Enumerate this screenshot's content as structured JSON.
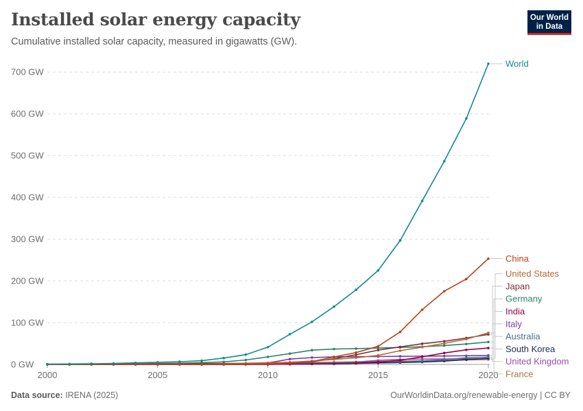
{
  "header": {
    "title": "Installed solar energy capacity",
    "subtitle": "Cumulative installed solar capacity, measured in gigawatts (GW).",
    "logo_line1": "Our World",
    "logo_line2": "in Data"
  },
  "footer": {
    "source_label": "Data source:",
    "source_value": "IRENA (2025)",
    "url_license": "OurWorldinData.org/renewable-energy | CC BY"
  },
  "chart_data": {
    "type": "line",
    "title": "Installed solar energy capacity",
    "subtitle": "Cumulative installed solar capacity, measured in gigawatts (GW).",
    "xlabel": "",
    "ylabel": "",
    "x": [
      2000,
      2001,
      2002,
      2003,
      2004,
      2005,
      2006,
      2007,
      2008,
      2009,
      2010,
      2011,
      2012,
      2013,
      2014,
      2015,
      2016,
      2017,
      2018,
      2019,
      2020
    ],
    "xlim": [
      2000,
      2020
    ],
    "ylim": [
      0,
      720
    ],
    "x_ticks": [
      2000,
      2005,
      2010,
      2015,
      2020
    ],
    "x_tick_labels": [
      "2000",
      "2005",
      "2010",
      "2015",
      "2020"
    ],
    "y_ticks": [
      0,
      100,
      200,
      300,
      400,
      500,
      600,
      700
    ],
    "y_tick_labels": [
      "0 GW",
      "100 GW",
      "200 GW",
      "300 GW",
      "400 GW",
      "500 GW",
      "600 GW",
      "700 GW"
    ],
    "grid": "horizontal dashed",
    "legend": "right, labels at line ends",
    "series": [
      {
        "name": "World",
        "color": "#138a8a",
        "values": [
          0.8,
          1.2,
          1.7,
          2.5,
          3.7,
          5.1,
          6.6,
          8.9,
          15.2,
          23.5,
          41.4,
          72.4,
          101.9,
          138.3,
          178.6,
          224.9,
          296.7,
          391.5,
          486.4,
          588.9,
          720
        ]
      },
      {
        "name": "China",
        "color": "#b5421c",
        "values": [
          0,
          0,
          0,
          0,
          0,
          0,
          0,
          0.1,
          0.1,
          0.4,
          1.0,
          3.1,
          6.7,
          17.8,
          28.4,
          43.5,
          77.8,
          130.8,
          175.3,
          204.6,
          253.4
        ]
      },
      {
        "name": "United States",
        "color": "#b56a3a",
        "values": [
          0.1,
          0.1,
          0.2,
          0.3,
          0.4,
          0.5,
          0.6,
          0.8,
          1.2,
          1.7,
          2.9,
          5.2,
          8.1,
          12.0,
          15.9,
          21.7,
          32.9,
          41.4,
          50.3,
          60.5,
          75.6
        ]
      },
      {
        "name": "Japan",
        "color": "#7d2e35",
        "values": [
          0.3,
          0.4,
          0.6,
          0.8,
          1.1,
          1.4,
          1.7,
          1.9,
          2.1,
          2.6,
          3.6,
          4.9,
          6.6,
          13.6,
          23.3,
          34.2,
          42.0,
          49.5,
          55.5,
          63.2,
          71.9
        ]
      },
      {
        "name": "Germany",
        "color": "#2c8465",
        "values": [
          0.1,
          0.2,
          0.3,
          0.4,
          1.1,
          2.1,
          2.9,
          4.2,
          6.1,
          10.6,
          18.0,
          25.9,
          34.1,
          36.7,
          37.9,
          39.2,
          40.7,
          42.3,
          45.2,
          48.9,
          53.8
        ]
      },
      {
        "name": "India",
        "color": "#970046",
        "values": [
          0,
          0,
          0,
          0,
          0,
          0,
          0,
          0,
          0,
          0,
          0.1,
          0.6,
          1.2,
          1.4,
          3.3,
          5.6,
          9.7,
          18.2,
          27.4,
          35.0,
          39.2
        ]
      },
      {
        "name": "Italy",
        "color": "#7a3c96",
        "values": [
          0,
          0,
          0,
          0,
          0,
          0,
          0,
          0.1,
          0.5,
          1.1,
          3.5,
          12.8,
          16.4,
          18.2,
          18.6,
          18.9,
          19.3,
          19.7,
          20.1,
          20.9,
          21.6
        ]
      },
      {
        "name": "Australia",
        "color": "#4a6e96",
        "values": [
          0,
          0,
          0,
          0,
          0,
          0,
          0,
          0,
          0.1,
          0.2,
          1.1,
          2.3,
          3.6,
          4.5,
          5.3,
          6.0,
          6.8,
          8.2,
          11.3,
          15.9,
          17.6
        ]
      },
      {
        "name": "South Korea",
        "color": "#1a2d52",
        "values": [
          0,
          0,
          0,
          0,
          0,
          0,
          0,
          0.1,
          0.3,
          0.4,
          0.6,
          0.7,
          1.0,
          1.6,
          2.5,
          3.6,
          4.5,
          5.8,
          7.9,
          11.6,
          14.6
        ]
      },
      {
        "name": "United Kingdom",
        "color": "#9a4ea8",
        "values": [
          0,
          0,
          0,
          0,
          0,
          0,
          0,
          0,
          0,
          0,
          0.1,
          1.0,
          1.7,
          2.9,
          5.5,
          9.6,
          11.9,
          12.8,
          13.1,
          13.3,
          13.5
        ]
      },
      {
        "name": "France",
        "color": "#a57740",
        "values": [
          0,
          0,
          0,
          0,
          0,
          0,
          0,
          0,
          0.1,
          0.3,
          1.1,
          3.0,
          4.4,
          5.3,
          6.0,
          7.1,
          7.7,
          8.6,
          9.5,
          10.6,
          11.7
        ]
      }
    ]
  }
}
